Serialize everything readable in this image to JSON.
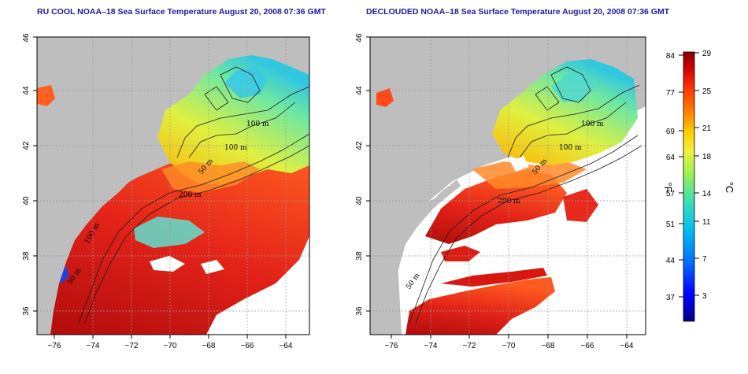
{
  "panels": [
    {
      "id": "left",
      "title": "RU COOL NOAA–18 Sea Surface Temperature August 20, 2008 07:36 GMT"
    },
    {
      "id": "right",
      "title": "DECLOUDED NOAA–18 Sea Surface Temperature August 20, 2008 07:36 GMT"
    }
  ],
  "axes": {
    "x_ticks": [
      "−76",
      "−74",
      "−72",
      "−70",
      "−68",
      "−66",
      "−64"
    ],
    "y_ticks": [
      "36",
      "38",
      "40",
      "42",
      "44",
      "46"
    ]
  },
  "contour_labels": {
    "left": [
      "100 m",
      "100 m",
      "50 m",
      "200 m",
      "100 m",
      "50 m"
    ],
    "right": [
      "100 m",
      "100 m",
      "50 m",
      "200 m",
      "50 m"
    ]
  },
  "colorbar": {
    "f_ticks": [
      "84",
      "77",
      "69",
      "64",
      "57",
      "51",
      "44",
      "37"
    ],
    "c_ticks": [
      "29",
      "25",
      "21",
      "18",
      "14",
      "11",
      "7",
      "3"
    ],
    "f_label": "°F",
    "c_label": "°C",
    "colors": [
      "#00008b",
      "#0000ff",
      "#0060ff",
      "#00b4ff",
      "#30e0c0",
      "#80f060",
      "#e6f040",
      "#ffd000",
      "#ff8000",
      "#ff3000",
      "#d00000",
      "#8b0000"
    ]
  },
  "colors": {
    "land": "#bebebe",
    "masked": "#ffffff",
    "warm": "#e32318",
    "deep_warm": "#c01010",
    "mid": "#ff7020",
    "cool": "#c8f040",
    "cold": "#3cd0c8",
    "grid": "#9a9a9a"
  }
}
